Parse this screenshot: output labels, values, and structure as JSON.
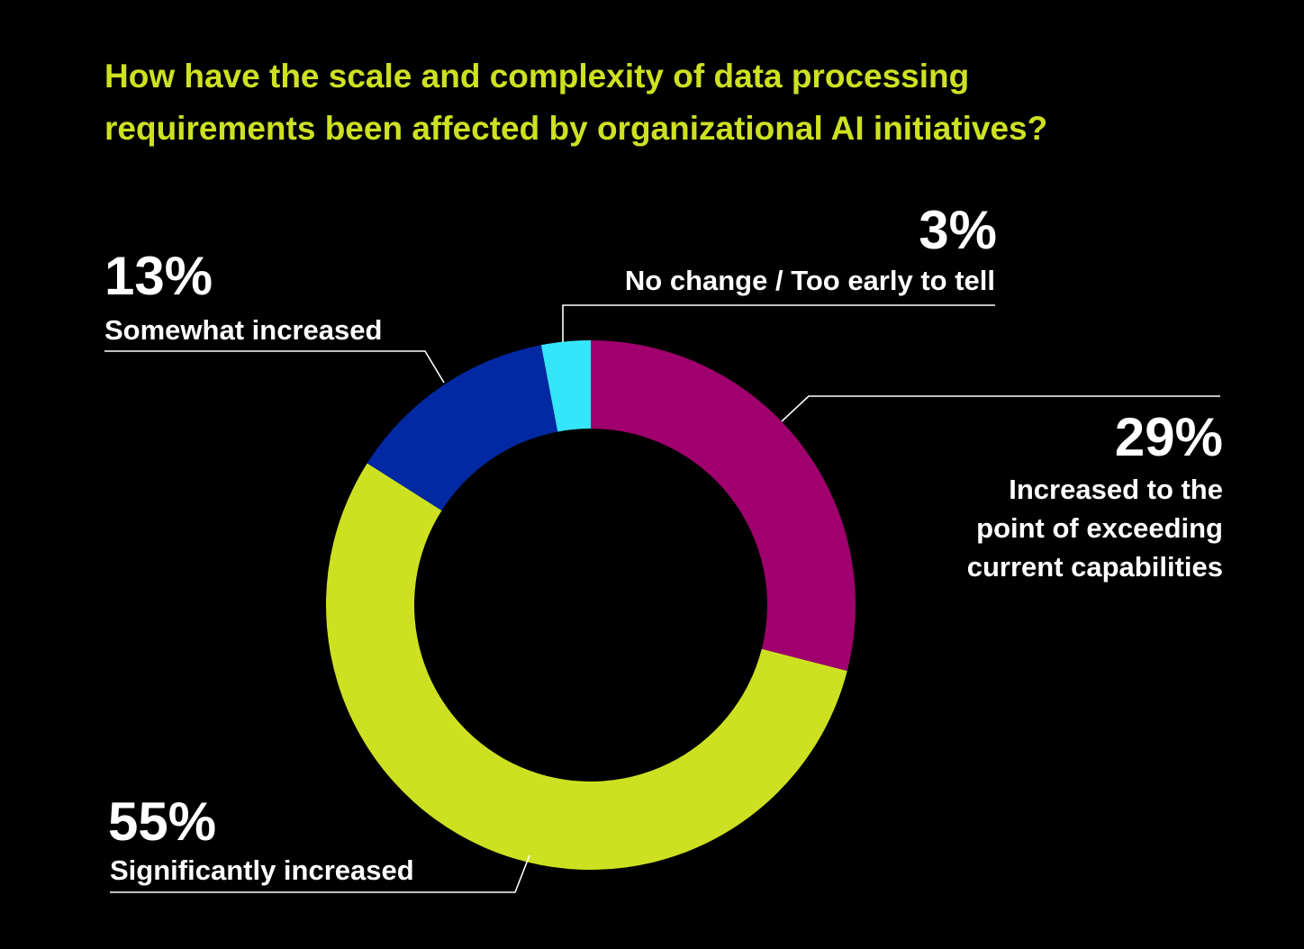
{
  "chart_data": {
    "type": "pie",
    "variant": "donut",
    "title_lines": [
      "How have the scale and complexity of data processing",
      "requirements been affected by organizational AI initiatives?"
    ],
    "slices": [
      {
        "key": "exceeding",
        "value": 29,
        "pct_label": "29%",
        "label_lines": [
          "Increased to the",
          "point of exceeding",
          "current capabilities"
        ],
        "color": "#a0006d"
      },
      {
        "key": "significantly",
        "value": 55,
        "pct_label": "55%",
        "label_lines": [
          "Significantly increased"
        ],
        "color": "#cde122"
      },
      {
        "key": "somewhat",
        "value": 13,
        "pct_label": "13%",
        "label_lines": [
          "Somewhat increased"
        ],
        "color": "#0229a3"
      },
      {
        "key": "nochange",
        "value": 3,
        "pct_label": "3%",
        "label_lines": [
          "No change / Too early to tell"
        ],
        "color": "#35e6fa"
      }
    ]
  },
  "colors": {
    "background": "#000000",
    "title": "#cde122",
    "text": "#ffffff"
  }
}
